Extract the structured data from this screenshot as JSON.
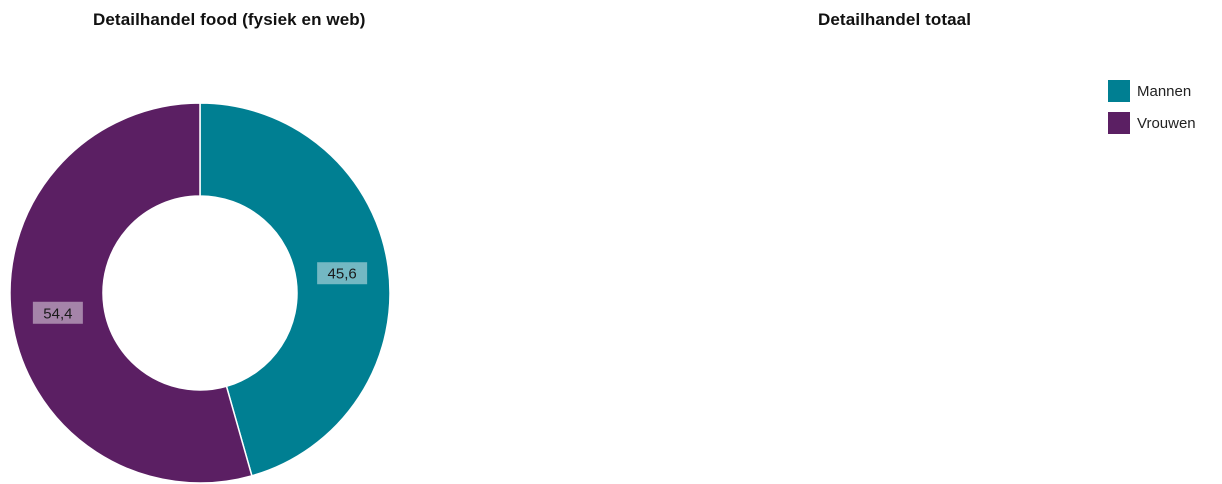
{
  "titles": {
    "left": "Detailhandel food (fysiek en web)",
    "right": "Detailhandel totaal"
  },
  "colors": {
    "mannen": "#007F92",
    "vrouwen": "#5B1F63"
  },
  "legend": {
    "items": [
      {
        "label": "Mannen",
        "color": "#007F92"
      },
      {
        "label": "Vrouwen",
        "color": "#5B1F63"
      }
    ]
  },
  "chart_data": [
    {
      "type": "pie",
      "title": "Detailhandel food (fysiek en web)",
      "donut": true,
      "categories": [
        "Mannen",
        "Vrouwen"
      ],
      "values": [
        45.6,
        54.4
      ],
      "value_labels": [
        "45,6",
        "54,4"
      ],
      "colors": [
        "#007F92",
        "#5B1F63"
      ],
      "legend_position": "top-right"
    },
    {
      "type": "pie",
      "title": "Detailhandel totaal",
      "categories": [],
      "values": []
    }
  ]
}
